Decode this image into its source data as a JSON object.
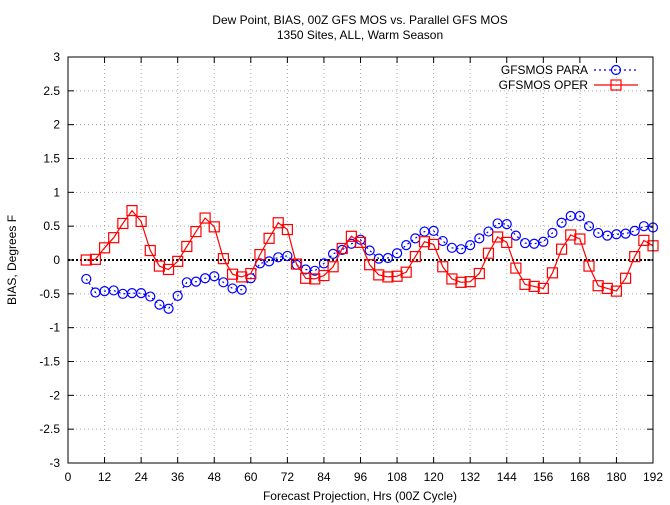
{
  "chart_data": {
    "type": "line",
    "title": "Dew Point, BIAS, 00Z GFS MOS vs. Parallel GFS MOS",
    "subtitle": "1350 Sites, ALL, Warm Season",
    "xlabel": "Forecast Projection, Hrs (00Z Cycle)",
    "ylabel": "BIAS, Degrees F",
    "xlim": [
      0,
      192
    ],
    "ylim": [
      -3,
      3
    ],
    "xticks": [
      0,
      12,
      24,
      36,
      48,
      60,
      72,
      84,
      96,
      108,
      120,
      132,
      144,
      156,
      168,
      180,
      192
    ],
    "yticks": [
      -3,
      -2.5,
      -2,
      -1.5,
      -1,
      -0.5,
      0,
      0.5,
      1,
      1.5,
      2,
      2.5,
      3
    ],
    "ytick_labels": [
      "-3",
      "-2.5",
      "-2",
      "-1.5",
      "-1",
      "-0.5",
      "0",
      "0.5",
      "1",
      "1.5",
      "2",
      "2.5",
      "3"
    ],
    "grid": true,
    "zero_line": true,
    "legend_position": "top-right",
    "x": [
      6,
      9,
      12,
      15,
      18,
      21,
      24,
      27,
      30,
      33,
      36,
      39,
      42,
      45,
      48,
      51,
      54,
      57,
      60,
      63,
      66,
      69,
      72,
      75,
      78,
      81,
      84,
      87,
      90,
      93,
      96,
      99,
      102,
      105,
      108,
      111,
      114,
      117,
      120,
      123,
      126,
      129,
      132,
      135,
      138,
      141,
      144,
      147,
      150,
      153,
      156,
      159,
      162,
      165,
      168,
      171,
      174,
      177,
      180,
      183,
      186,
      189,
      192
    ],
    "series": [
      {
        "name": "GFSMOS PARA",
        "color": "#0000ff",
        "marker": "circle",
        "line": "dotted",
        "values": [
          -0.28,
          -0.48,
          -0.46,
          -0.45,
          -0.5,
          -0.49,
          -0.49,
          -0.54,
          -0.66,
          -0.72,
          -0.53,
          -0.33,
          -0.32,
          -0.27,
          -0.24,
          -0.33,
          -0.42,
          -0.44,
          -0.27,
          -0.05,
          -0.02,
          0.04,
          0.06,
          -0.07,
          -0.14,
          -0.16,
          -0.05,
          0.09,
          0.15,
          0.24,
          0.3,
          0.14,
          0.02,
          0.03,
          0.1,
          0.22,
          0.32,
          0.42,
          0.43,
          0.28,
          0.18,
          0.16,
          0.22,
          0.32,
          0.42,
          0.54,
          0.53,
          0.36,
          0.25,
          0.24,
          0.27,
          0.4,
          0.55,
          0.65,
          0.65,
          0.5,
          0.4,
          0.36,
          0.38,
          0.39,
          0.43,
          0.5,
          0.48
        ]
      },
      {
        "name": "GFSMOS OPER",
        "color": "#ff0000",
        "marker": "square",
        "line": "solid",
        "values": [
          0.0,
          0.01,
          0.18,
          0.33,
          0.54,
          0.73,
          0.57,
          0.14,
          -0.09,
          -0.14,
          -0.02,
          0.2,
          0.42,
          0.62,
          0.49,
          0.02,
          -0.21,
          -0.25,
          -0.2,
          0.08,
          0.32,
          0.55,
          0.45,
          -0.06,
          -0.27,
          -0.28,
          -0.23,
          -0.1,
          0.17,
          0.35,
          0.26,
          -0.07,
          -0.22,
          -0.25,
          -0.24,
          -0.18,
          0.05,
          0.27,
          0.23,
          -0.1,
          -0.28,
          -0.33,
          -0.32,
          -0.2,
          0.1,
          0.34,
          0.26,
          -0.12,
          -0.36,
          -0.39,
          -0.42,
          -0.19,
          0.16,
          0.37,
          0.31,
          -0.09,
          -0.38,
          -0.42,
          -0.46,
          -0.27,
          0.05,
          0.29,
          0.21
        ]
      }
    ]
  }
}
